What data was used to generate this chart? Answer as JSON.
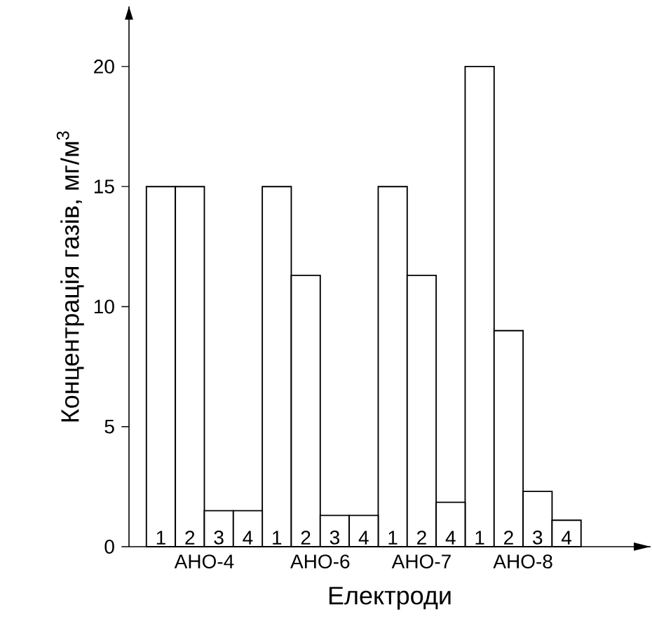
{
  "chart_data": {
    "type": "bar",
    "xlabel": "Електроди",
    "ylabel": "Концентрація газів, мг/м$^{3}$",
    "categories": [
      "АНО-4",
      "АНО-6",
      "АНО-7",
      "АНО-8"
    ],
    "series": [
      {
        "name": "1",
        "color": "#ffffff",
        "values": [
          15,
          15,
          15,
          20
        ]
      },
      {
        "name": "2",
        "color": "#ffffff",
        "values": [
          15,
          11.3,
          11.3,
          9
        ]
      },
      {
        "name": "3",
        "color": "#ffffff",
        "values": [
          1.5,
          1.3,
          null,
          2.3
        ]
      },
      {
        "name": "4",
        "color": "#ffffff",
        "values": [
          1.5,
          1.3,
          1.85,
          1.1
        ]
      }
    ],
    "ylim": [
      0,
      22.5
    ],
    "yticks": [
      0,
      5,
      10,
      15,
      20
    ]
  }
}
